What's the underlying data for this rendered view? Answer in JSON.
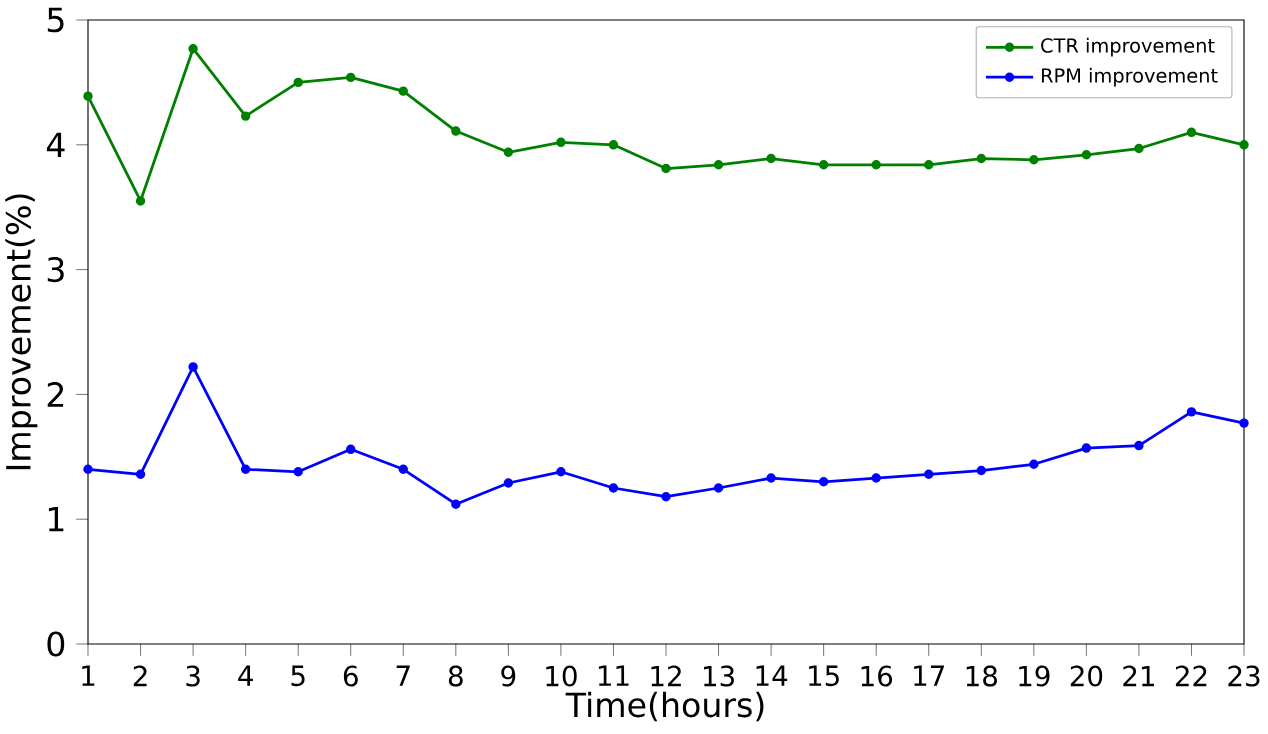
{
  "chart_data": {
    "type": "line",
    "xlabel": "Time(hours)",
    "ylabel": "Improvement(%)",
    "x": [
      1,
      2,
      3,
      4,
      5,
      6,
      7,
      8,
      9,
      10,
      11,
      12,
      13,
      14,
      15,
      16,
      17,
      18,
      19,
      20,
      21,
      22,
      23
    ],
    "xlim": [
      1,
      23
    ],
    "xticks": [
      1,
      2,
      3,
      4,
      5,
      6,
      7,
      8,
      9,
      10,
      11,
      12,
      13,
      14,
      15,
      16,
      17,
      18,
      19,
      20,
      21,
      22,
      23
    ],
    "ylim": [
      0,
      5
    ],
    "yticks": [
      0,
      1,
      2,
      3,
      4,
      5
    ],
    "series": [
      {
        "name": "CTR improvement",
        "color": "#008000",
        "values": [
          4.39,
          3.55,
          4.77,
          4.23,
          4.5,
          4.54,
          4.43,
          4.11,
          3.94,
          4.02,
          4.0,
          3.81,
          3.84,
          3.89,
          3.84,
          3.84,
          3.84,
          3.89,
          3.88,
          3.92,
          3.97,
          4.1,
          4.0
        ]
      },
      {
        "name": "RPM improvement",
        "color": "#0000ff",
        "values": [
          1.4,
          1.36,
          2.22,
          1.4,
          1.38,
          1.56,
          1.4,
          1.12,
          1.29,
          1.38,
          1.25,
          1.18,
          1.25,
          1.33,
          1.3,
          1.33,
          1.36,
          1.39,
          1.44,
          1.57,
          1.59,
          1.86,
          1.77
        ]
      }
    ],
    "marker": "circle",
    "line_style": "solid",
    "legend": "top right",
    "grid": false
  }
}
